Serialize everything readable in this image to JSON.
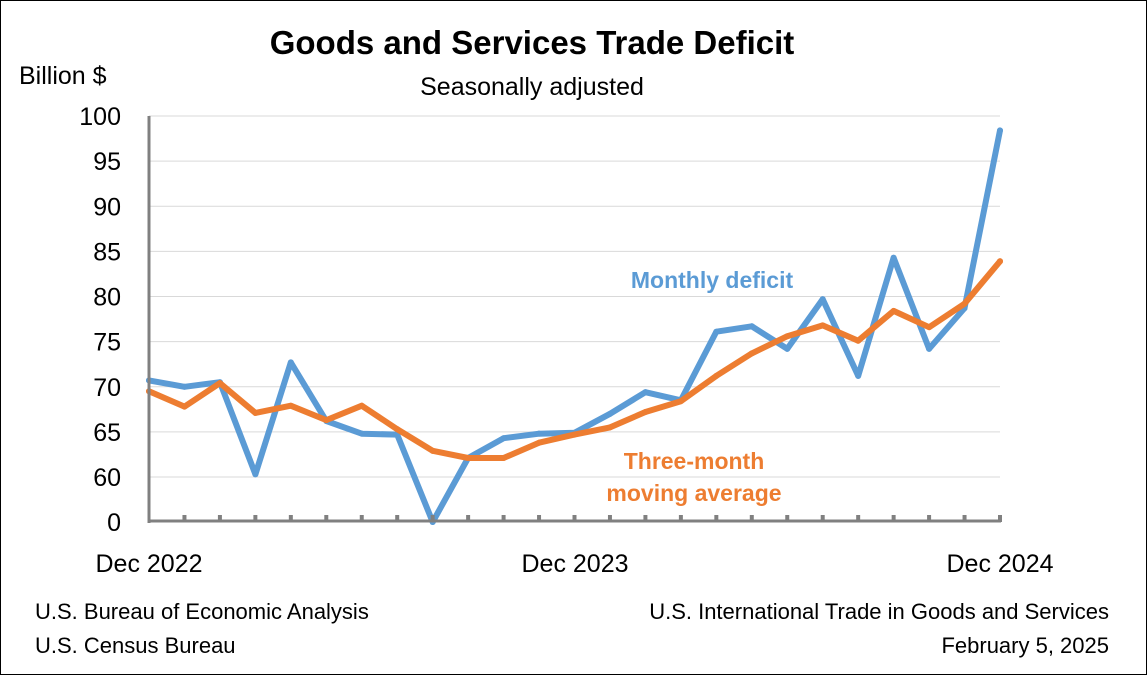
{
  "chart_data": {
    "type": "line",
    "title": "Goods and Services Trade Deficit",
    "subtitle": "Seasonally adjusted",
    "ylabel": "Billion $",
    "ylim": [
      60,
      100
    ],
    "y_axis_break": true,
    "yticks": [
      "0",
      "60",
      "65",
      "70",
      "75",
      "80",
      "85",
      "90",
      "95",
      "100"
    ],
    "xtick_labels": [
      "Dec 2022",
      "Dec 2023",
      "Dec 2024"
    ],
    "x": [
      "Dec 2022",
      "Jan 2023",
      "Feb 2023",
      "Mar 2023",
      "Apr 2023",
      "May 2023",
      "Jun 2023",
      "Jul 2023",
      "Aug 2023",
      "Sep 2023",
      "Oct 2023",
      "Nov 2023",
      "Dec 2023",
      "Jan 2024",
      "Feb 2024",
      "Mar 2024",
      "Apr 2024",
      "May 2024",
      "Jun 2024",
      "Jul 2024",
      "Aug 2024",
      "Sep 2024",
      "Oct 2024",
      "Nov 2024",
      "Dec 2024"
    ],
    "grid": true,
    "series": [
      {
        "name": "Monthly deficit",
        "color": "#5B9BD5",
        "values": [
          70.7,
          70.0,
          70.5,
          60.3,
          72.7,
          66.2,
          64.8,
          64.7,
          59.7,
          62.1,
          64.3,
          64.8,
          64.9,
          67.0,
          69.4,
          68.5,
          76.1,
          76.7,
          74.2,
          79.7,
          71.2,
          84.3,
          74.2,
          78.7,
          98.4
        ]
      },
      {
        "name": "Three-month moving average",
        "label_lines": [
          "Three-month",
          "moving average"
        ],
        "color": "#ED7D31",
        "values": [
          69.5,
          67.8,
          70.4,
          67.1,
          67.9,
          66.3,
          67.9,
          65.3,
          62.9,
          62.1,
          62.1,
          63.8,
          64.7,
          65.5,
          67.2,
          68.4,
          71.2,
          73.7,
          75.6,
          76.8,
          75.1,
          78.4,
          76.6,
          79.2,
          83.9
        ]
      }
    ]
  },
  "footer": {
    "left": [
      "U.S. Bureau of Economic Analysis",
      "U.S. Census Bureau"
    ],
    "right": [
      "U.S. International Trade in Goods and Services",
      "February 5, 2025"
    ]
  }
}
